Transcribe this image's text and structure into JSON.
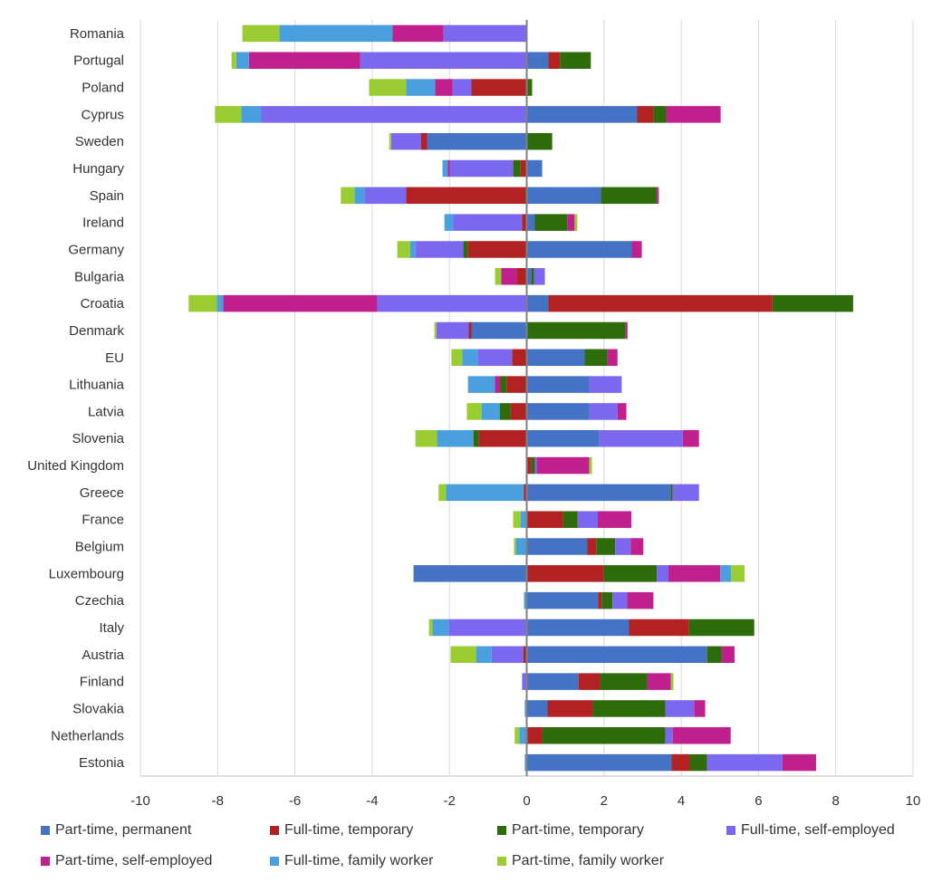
{
  "chart_data": {
    "type": "bar",
    "orientation": "horizontal",
    "stacked": true,
    "xlim": [
      -10,
      10
    ],
    "xticks": [
      -10,
      -8,
      -6,
      -4,
      -2,
      0,
      2,
      4,
      6,
      8,
      10
    ],
    "grid": true,
    "legend_position": "bottom",
    "categories": [
      "Romania",
      "Portugal",
      "Poland",
      "Cyprus",
      "Sweden",
      "Hungary",
      "Spain",
      "Ireland",
      "Germany",
      "Bulgaria",
      "Croatia",
      "Denmark",
      "EU",
      "Lithuania",
      "Latvia",
      "Slovenia",
      "United Kingdom",
      "Greece",
      "France",
      "Belgium",
      "Luxembourg",
      "Czechia",
      "Italy",
      "Austria",
      "Finland",
      "Slovakia",
      "Netherlands",
      "Estonia"
    ],
    "series": [
      {
        "name": "Part-time, permanent",
        "color": "#4472C4",
        "values": [
          0,
          0.56,
          0,
          2.86,
          -2.58,
          0.4,
          1.92,
          0.21,
          2.72,
          0.12,
          0.56,
          -1.43,
          1.5,
          1.62,
          1.62,
          1.88,
          0,
          3.73,
          0,
          1.57,
          -2.93,
          1.85,
          2.65,
          4.67,
          1.34,
          0.54,
          0,
          3.75
        ]
      },
      {
        "name": "Full-time, temporary",
        "color": "#B22222",
        "values": [
          0,
          0.3,
          -1.43,
          0.42,
          -0.16,
          -0.16,
          -3.12,
          -0.12,
          -1.52,
          -0.26,
          5.8,
          -0.07,
          -0.38,
          -0.52,
          -0.42,
          -1.24,
          0.12,
          -0.07,
          0.94,
          0.23,
          1.99,
          0.09,
          1.55,
          -0.09,
          0.56,
          1.17,
          0.4,
          0.47
        ]
      },
      {
        "name": "Part-time, temporary",
        "color": "#2E6B0B",
        "values": [
          0,
          0.8,
          0.14,
          0.33,
          0.66,
          -0.19,
          1.45,
          0.84,
          -0.12,
          0.07,
          2.09,
          2.56,
          0.59,
          -0.16,
          -0.28,
          -0.14,
          0.09,
          0.05,
          0.38,
          0.49,
          1.38,
          0.28,
          1.69,
          0.38,
          1.22,
          1.88,
          3.19,
          0.45
        ]
      },
      {
        "name": "Full-time, self-employed",
        "color": "#7B68EE",
        "values": [
          -2.16,
          -4.31,
          -0.49,
          -6.87,
          -0.77,
          -1.64,
          -1.08,
          -1.78,
          -1.24,
          0.28,
          -3.87,
          -0.84,
          -0.89,
          0.84,
          0.73,
          2.16,
          0.05,
          0.68,
          0.52,
          0.4,
          0.3,
          0.38,
          -2.02,
          -0.82,
          -0.12,
          0.75,
          0.19,
          1.95
        ]
      },
      {
        "name": "Part-time, self-employed",
        "color": "#C0208E",
        "values": [
          -1.31,
          -2.88,
          -0.45,
          1.41,
          0,
          -0.05,
          0.05,
          0.19,
          0.26,
          -0.4,
          -3.99,
          0.05,
          0.26,
          -0.14,
          0.23,
          0.42,
          1.36,
          0,
          0.87,
          0.33,
          1.34,
          0.68,
          0,
          0.33,
          0.61,
          0.28,
          1.5,
          0.87
        ]
      },
      {
        "name": "Full-time, family worker",
        "color": "#4A9FDF",
        "values": [
          -2.93,
          -0.33,
          -0.75,
          -0.52,
          0,
          -0.14,
          -0.26,
          -0.23,
          -0.14,
          0,
          -0.16,
          0,
          -0.4,
          -0.7,
          -0.47,
          -0.94,
          0,
          -2.02,
          -0.16,
          -0.28,
          0.28,
          -0.07,
          -0.42,
          -0.4,
          0,
          -0.05,
          -0.19,
          -0.05
        ]
      },
      {
        "name": "Part-time, family worker",
        "color": "#9ACD32",
        "values": [
          -0.96,
          -0.12,
          -0.96,
          -0.68,
          -0.05,
          0,
          -0.35,
          0.07,
          -0.33,
          -0.16,
          -0.73,
          -0.05,
          -0.28,
          0,
          -0.38,
          -0.56,
          0.07,
          -0.19,
          -0.19,
          -0.05,
          0.35,
          0,
          -0.09,
          -0.66,
          0.07,
          0,
          -0.12,
          0
        ]
      }
    ]
  }
}
